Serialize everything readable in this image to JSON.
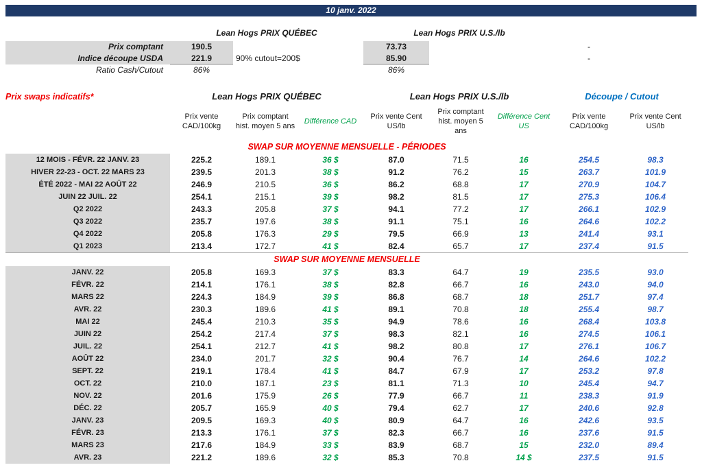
{
  "colors": {
    "banner_bg": "#1F3A68",
    "accent_red": "#F00000",
    "diff_green": "#00A14B",
    "cutout_blue": "#0070C0",
    "value_blue": "#2E64C8",
    "cell_gray": "#D9D9D9"
  },
  "header": {
    "date": "10 janv. 2022"
  },
  "summary": {
    "quebec_header": "Lean Hogs PRIX QUÉBEC",
    "us_header": "Lean Hogs PRIX U.S./lb",
    "spot": {
      "label": "Prix comptant",
      "quebec": "190.5",
      "us": "73.73",
      "dash": "-"
    },
    "cutout_index": {
      "label": "Indice découpe USDA",
      "quebec": "221.9",
      "note": "90% cutout=200$",
      "us": "85.90",
      "dash": "-"
    },
    "ratio": {
      "label": "Ratio Cash/Cutout",
      "quebec": "86%",
      "us": "86%"
    }
  },
  "swaps": {
    "title": "Prix swaps indicatifs*",
    "group_headers": {
      "quebec": "Lean Hogs PRIX QUÉBEC",
      "us": "Lean Hogs PRIX U.S./lb",
      "cutout": "Découpe / Cutout"
    },
    "col_headers": [
      "Prix vente CAD/100kg",
      "Prix comptant hist. moyen 5 ans",
      "Différence CAD",
      "Prix vente Cent US/lb",
      "Prix comptant hist. moyen 5 ans",
      "Différence Cent US",
      "Prix vente CAD/100kg",
      "Prix vente Cent US/lb"
    ],
    "sections": [
      {
        "title": "SWAP SUR MOYENNE MENSUELLE - PÉRIODES",
        "rows": [
          [
            "12 MOIS - FÉVR. 22 JANV. 23",
            "225.2",
            "189.1",
            "36 $",
            "87.0",
            "71.5",
            "16",
            "254.5",
            "98.3"
          ],
          [
            "HIVER 22-23 - OCT. 22 MARS 23",
            "239.5",
            "201.3",
            "38 $",
            "91.2",
            "76.2",
            "15",
            "263.7",
            "101.9"
          ],
          [
            "ÉTÉ 2022 - MAI 22 AOÛT 22",
            "246.9",
            "210.5",
            "36 $",
            "86.2",
            "68.8",
            "17",
            "270.9",
            "104.7"
          ],
          [
            "JUIN 22 JUIL. 22",
            "254.1",
            "215.1",
            "39 $",
            "98.2",
            "81.5",
            "17",
            "275.3",
            "106.4"
          ],
          [
            "Q2 2022",
            "243.3",
            "205.8",
            "37 $",
            "94.1",
            "77.2",
            "17",
            "266.1",
            "102.9"
          ],
          [
            "Q3 2022",
            "235.7",
            "197.6",
            "38 $",
            "91.1",
            "75.1",
            "16",
            "264.6",
            "102.2"
          ],
          [
            "Q4 2022",
            "205.8",
            "176.3",
            "29 $",
            "79.5",
            "66.9",
            "13",
            "241.4",
            "93.1"
          ],
          [
            "Q1 2023",
            "213.4",
            "172.7",
            "41 $",
            "82.4",
            "65.7",
            "17",
            "237.4",
            "91.5"
          ]
        ]
      },
      {
        "title": "SWAP SUR MOYENNE MENSUELLE",
        "rows": [
          [
            "JANV. 22",
            "205.8",
            "169.3",
            "37 $",
            "83.3",
            "64.7",
            "19",
            "235.5",
            "93.0"
          ],
          [
            "FÉVR. 22",
            "214.1",
            "176.1",
            "38 $",
            "82.8",
            "66.7",
            "16",
            "243.0",
            "94.0"
          ],
          [
            "MARS 22",
            "224.3",
            "184.9",
            "39 $",
            "86.8",
            "68.7",
            "18",
            "251.7",
            "97.4"
          ],
          [
            "AVR. 22",
            "230.3",
            "189.6",
            "41 $",
            "89.1",
            "70.8",
            "18",
            "255.4",
            "98.7"
          ],
          [
            "MAI 22",
            "245.4",
            "210.3",
            "35 $",
            "94.9",
            "78.6",
            "16",
            "268.4",
            "103.8"
          ],
          [
            "JUIN 22",
            "254.2",
            "217.4",
            "37 $",
            "98.3",
            "82.1",
            "16",
            "274.5",
            "106.1"
          ],
          [
            "JUIL. 22",
            "254.1",
            "212.7",
            "41 $",
            "98.2",
            "80.8",
            "17",
            "276.1",
            "106.7"
          ],
          [
            "AOÛT 22",
            "234.0",
            "201.7",
            "32 $",
            "90.4",
            "76.7",
            "14",
            "264.6",
            "102.2"
          ],
          [
            "SEPT. 22",
            "219.1",
            "178.4",
            "41 $",
            "84.7",
            "67.9",
            "17",
            "253.2",
            "97.8"
          ],
          [
            "OCT. 22",
            "210.0",
            "187.1",
            "23 $",
            "81.1",
            "71.3",
            "10",
            "245.4",
            "94.7"
          ],
          [
            "NOV. 22",
            "201.6",
            "175.9",
            "26 $",
            "77.9",
            "66.7",
            "11",
            "238.3",
            "91.9"
          ],
          [
            "DÉC. 22",
            "205.7",
            "165.9",
            "40 $",
            "79.4",
            "62.7",
            "17",
            "240.6",
            "92.8"
          ],
          [
            "JANV. 23",
            "209.5",
            "169.3",
            "40 $",
            "80.9",
            "64.7",
            "16",
            "242.6",
            "93.5"
          ],
          [
            "FÉVR. 23",
            "213.3",
            "176.1",
            "37 $",
            "82.3",
            "66.7",
            "16",
            "237.6",
            "91.5"
          ],
          [
            "MARS 23",
            "217.6",
            "184.9",
            "33 $",
            "83.9",
            "68.7",
            "15",
            "232.0",
            "89.4"
          ],
          [
            "AVR. 23",
            "221.2",
            "189.6",
            "32 $",
            "85.3",
            "70.8",
            "14 $",
            "237.5",
            "91.5"
          ]
        ]
      }
    ]
  }
}
